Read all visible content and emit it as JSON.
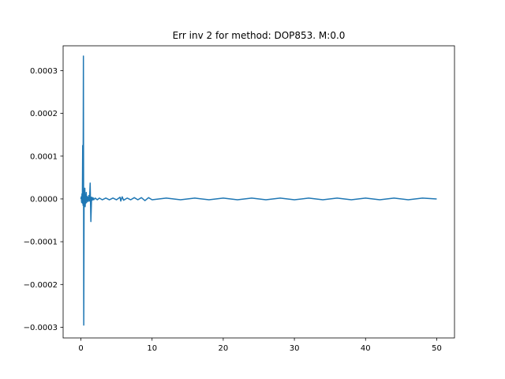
{
  "chart_data": {
    "type": "line",
    "title": "Err inv 2 for method: DOP853. M:0.0",
    "xlabel": "",
    "ylabel": "",
    "xlim": [
      -2.5,
      52.5
    ],
    "ylim": [
      -0.000325,
      0.000358
    ],
    "xticks": [
      0,
      10,
      20,
      30,
      40,
      50
    ],
    "xtick_labels": [
      "0",
      "10",
      "20",
      "30",
      "40",
      "50"
    ],
    "yticks": [
      0.0003,
      0.0002,
      0.0001,
      0.0,
      -0.0001,
      -0.0002,
      -0.0003
    ],
    "ytick_labels": [
      "0.0003",
      "0.0002",
      "0.0001",
      "0.0000",
      "−0.0001",
      "−0.0002",
      "−0.0003"
    ],
    "grid": false,
    "series": [
      {
        "color": "#1f77b4",
        "x": [
          0.0,
          0.05,
          0.1,
          0.15,
          0.2,
          0.25,
          0.3,
          0.35,
          0.4,
          0.45,
          0.5,
          0.55,
          0.6,
          0.65,
          0.7,
          0.75,
          0.8,
          0.85,
          0.9,
          0.95,
          1.0,
          1.1,
          1.2,
          1.3,
          1.4,
          1.5,
          1.6,
          1.7,
          1.8,
          2.0,
          2.3,
          2.6,
          3.0,
          3.5,
          4.0,
          4.5,
          5.0,
          5.5,
          5.6,
          5.8,
          6.0,
          6.5,
          7.0,
          7.5,
          8.0,
          8.5,
          9.0,
          9.5,
          10.0,
          12.0,
          14.0,
          16.0,
          18.0,
          20.0,
          22.0,
          24.0,
          26.0,
          28.0,
          30.0,
          32.0,
          34.0,
          36.0,
          38.0,
          40.0,
          42.0,
          44.0,
          46.0,
          48.0,
          50.0
        ],
        "y": [
          0.0,
          5e-06,
          -8e-06,
          1.2e-05,
          -1e-05,
          0.000125,
          -1.5e-05,
          0.000334,
          -0.000295,
          2e-05,
          -1.2e-05,
          2.5e-05,
          -1.8e-05,
          1e-05,
          -1e-05,
          1.5e-05,
          -8e-06,
          6e-06,
          -5e-06,
          4e-06,
          -6e-06,
          8e-06,
          -5e-06,
          3.7e-05,
          -5.3e-05,
          4e-06,
          -3e-06,
          3e-06,
          -2e-06,
          2e-06,
          -2e-06,
          2e-06,
          -2e-06,
          2e-06,
          -2e-06,
          2e-06,
          -2e-06,
          4e-06,
          -5e-06,
          5e-06,
          -3e-06,
          2e-06,
          -2e-06,
          3e-06,
          -2e-06,
          3e-06,
          -4e-06,
          3e-06,
          -2e-06,
          2e-06,
          -2e-06,
          2e-06,
          -2e-06,
          2e-06,
          -2e-06,
          2e-06,
          -2e-06,
          2e-06,
          -2e-06,
          2e-06,
          -2e-06,
          2e-06,
          -2e-06,
          2e-06,
          -2e-06,
          2e-06,
          -2e-06,
          2e-06,
          0.0
        ]
      }
    ]
  }
}
